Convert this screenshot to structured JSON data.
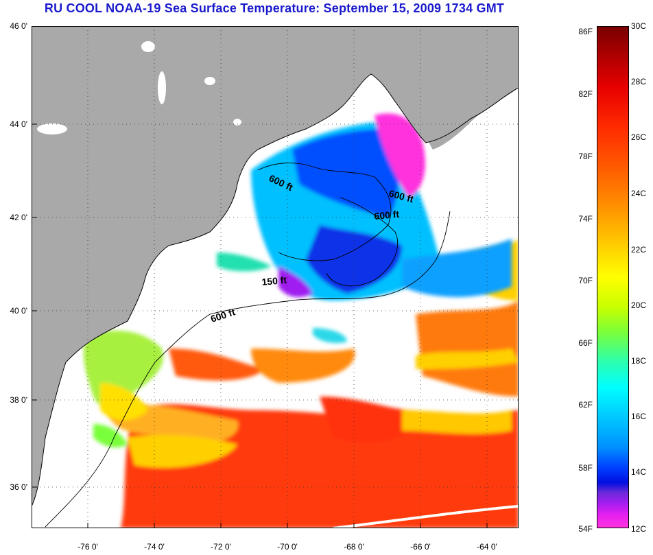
{
  "title": "RU COOL  NOAA-19  Sea Surface Temperature:  September 15, 2009 1734 GMT",
  "axes": {
    "lat_labels": [
      "46 0'",
      "44 0'",
      "42 0'",
      "40 0'",
      "38 0'",
      "36 0'"
    ],
    "lon_labels": [
      "-76 0'",
      "-74 0'",
      "-72 0'",
      "-70 0'",
      "-68 0'",
      "-66 0'",
      "-64 0'"
    ]
  },
  "contour_labels": {
    "c1": "600 ft",
    "c2": "600 ft",
    "c3": "600 ft",
    "c4": "150 ft",
    "c5": "600 ft"
  },
  "colorbar": {
    "fahrenheit": [
      "86F",
      "82F",
      "78F",
      "74F",
      "70F",
      "66F",
      "62F",
      "58F",
      "54F"
    ],
    "celsius": [
      "30C",
      "28C",
      "26C",
      "24C",
      "22C",
      "20C",
      "18C",
      "16C",
      "14C",
      "12C"
    ]
  },
  "colors": {
    "land": "#a9a9a9",
    "cloud": "#ffffff",
    "title": "#1a1acc"
  }
}
